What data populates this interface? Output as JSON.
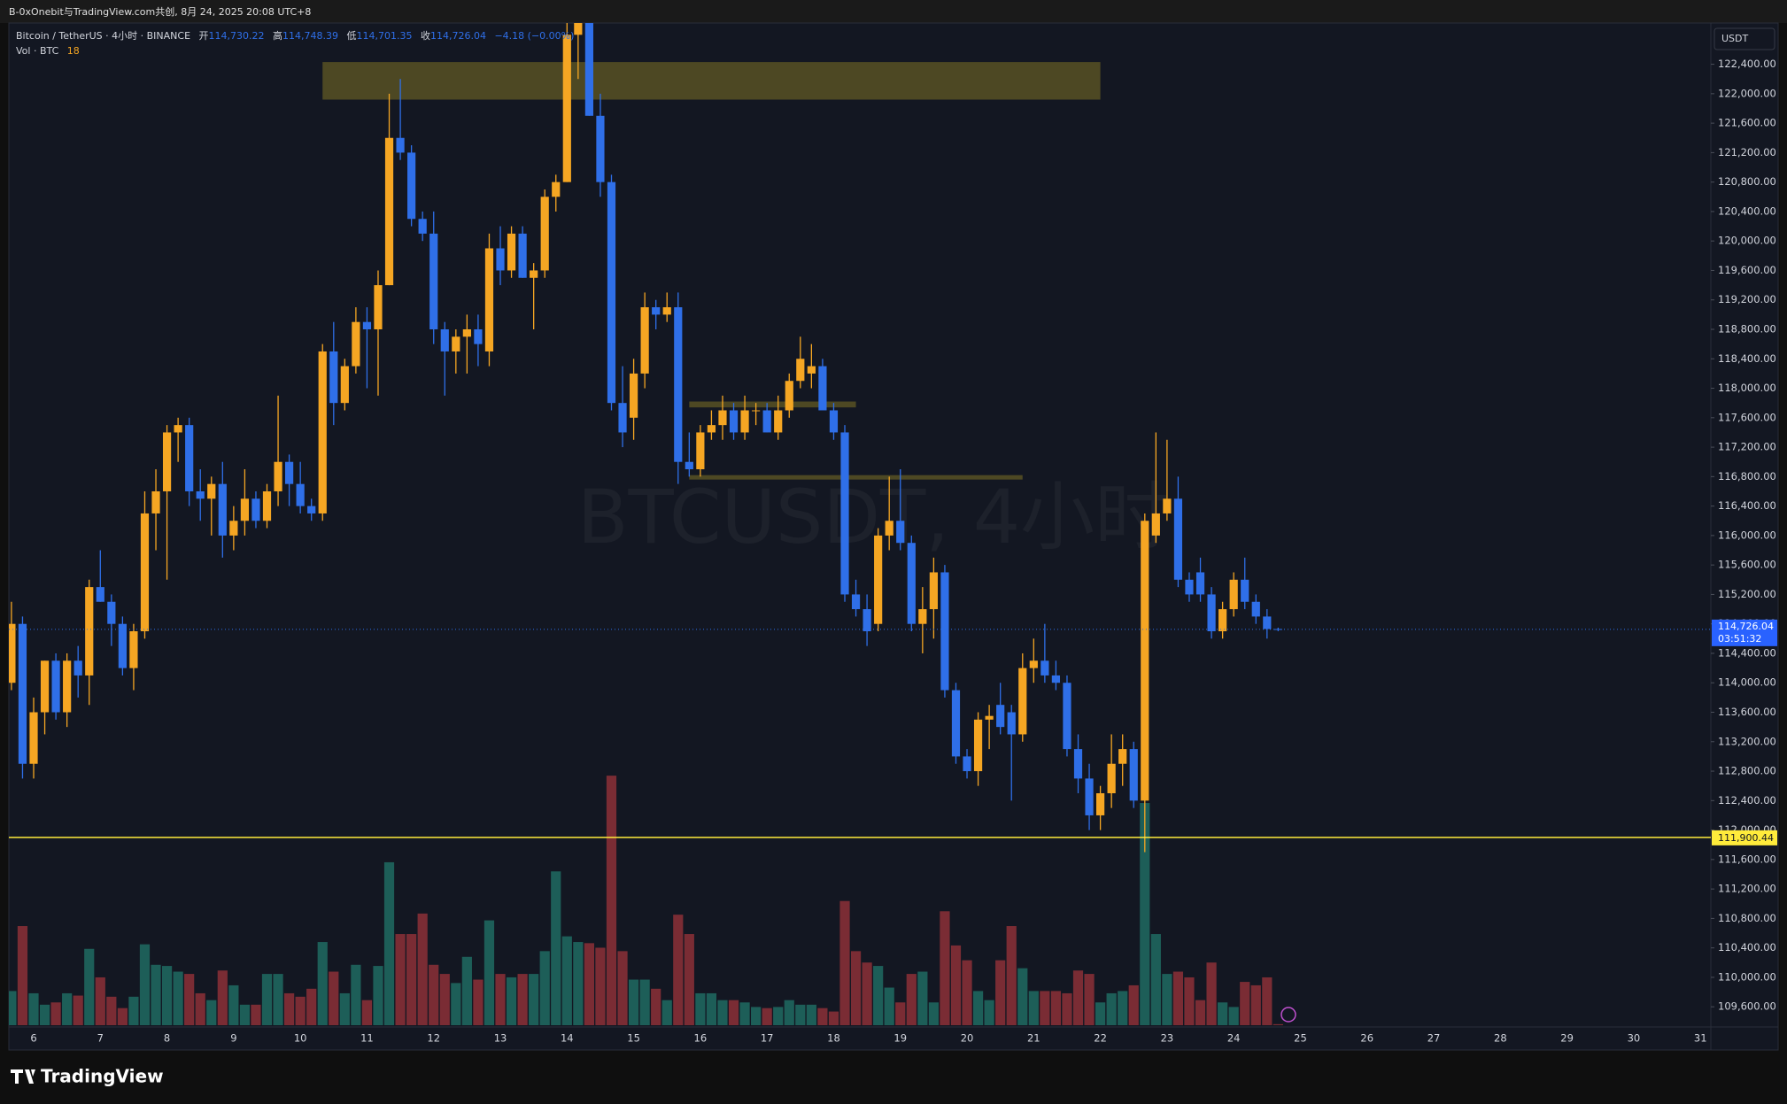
{
  "header": {
    "source": "B-0xOnebit与TradingView.com共创, 8月 24, 2025 20:08 UTC+8",
    "symbol": "Bitcoin / TetherUS · 4小时 · BINANCE",
    "ohlc_names": [
      "开",
      "高",
      "低",
      "收"
    ],
    "change": "−4.18 (−0.00%)",
    "volume_name": "Vol · BTC",
    "currency": "USDT",
    "watermark": "BTCUSDT, 4小时",
    "brand": "TradingView"
  },
  "chart_data": {
    "type": "candlestick",
    "open": [
      114000,
      114800,
      112900,
      113600,
      114300,
      113600,
      114300,
      114100,
      115300,
      115100,
      114800,
      114200,
      114700,
      116300,
      116600,
      117400,
      117500,
      116600,
      116500,
      116700,
      116000,
      116200,
      116500,
      116200,
      116600,
      117000,
      116700,
      116400,
      116300,
      118500,
      117800,
      118300,
      118900,
      118800,
      119400,
      121400,
      121200,
      120300,
      120100,
      118800,
      118500,
      118700,
      118800,
      118500,
      119900,
      119600,
      120100,
      119500,
      119600,
      120600,
      120800,
      122800,
      123100,
      121700,
      120800,
      117800,
      117600,
      118200,
      119100,
      119000,
      119100,
      117000,
      116900,
      117400,
      117500,
      117700,
      117400,
      117700,
      117700,
      117400,
      117700,
      118100,
      118200,
      118300,
      117700,
      117400,
      115200,
      115000,
      114800,
      116000,
      116200,
      115900,
      114800,
      115000,
      115500,
      113900,
      113000,
      112800,
      113500,
      113700,
      113600,
      113300,
      114200,
      114300,
      114100,
      114000,
      113100,
      112700,
      112200,
      112500,
      112900,
      113100,
      112400,
      116000,
      116300,
      116500,
      115400,
      115500,
      115200,
      114700,
      115000,
      115400,
      115100,
      114900,
      114730.22
    ],
    "high": [
      115100,
      114900,
      113800,
      114300,
      114400,
      114400,
      114500,
      115400,
      115800,
      115200,
      114900,
      114800,
      116600,
      116900,
      117500,
      117600,
      117600,
      116900,
      116800,
      117000,
      116400,
      116900,
      116600,
      116700,
      117900,
      117100,
      117000,
      116500,
      118600,
      118900,
      118400,
      119100,
      119100,
      119600,
      122000,
      122200,
      121300,
      120400,
      120400,
      118900,
      118800,
      119000,
      119000,
      120100,
      120200,
      120200,
      120200,
      119700,
      120700,
      120900,
      123300,
      123300,
      123500,
      122000,
      120900,
      118300,
      118400,
      119300,
      119200,
      119300,
      119300,
      117400,
      117500,
      117700,
      117900,
      117800,
      117900,
      117800,
      117800,
      117900,
      118200,
      118700,
      118600,
      118400,
      117800,
      117500,
      115400,
      115200,
      116100,
      116800,
      116900,
      116000,
      115300,
      115700,
      115600,
      114000,
      113100,
      113600,
      113700,
      114000,
      113700,
      114400,
      114600,
      114800,
      114300,
      114100,
      113300,
      112900,
      112600,
      113300,
      113300,
      113200,
      116300,
      117400,
      117300,
      116800,
      115500,
      115700,
      115300,
      115100,
      115500,
      115700,
      115200,
      115000,
      114748.39
    ],
    "low": [
      113900,
      112700,
      112700,
      113300,
      113500,
      113400,
      113800,
      113700,
      115100,
      114500,
      114100,
      113900,
      114600,
      115800,
      115400,
      117000,
      116400,
      116200,
      116000,
      115700,
      115800,
      116000,
      116100,
      116100,
      116400,
      116400,
      116300,
      116200,
      116200,
      117500,
      117700,
      118200,
      118000,
      117900,
      119400,
      121100,
      120200,
      120000,
      118600,
      117900,
      118200,
      118200,
      118300,
      118300,
      119400,
      119500,
      119500,
      118800,
      119500,
      120400,
      120800,
      122200,
      121700,
      120600,
      117700,
      117200,
      117300,
      118000,
      118800,
      118900,
      116700,
      116800,
      116800,
      117300,
      117300,
      117300,
      117300,
      117500,
      117400,
      117300,
      117600,
      118000,
      118000,
      117700,
      117300,
      115100,
      114900,
      114500,
      114700,
      115800,
      115800,
      114700,
      114400,
      114600,
      113800,
      112900,
      112700,
      112600,
      113100,
      113300,
      112400,
      113200,
      114000,
      114000,
      113900,
      113000,
      112500,
      112000,
      112000,
      112300,
      112600,
      112300,
      111700,
      115900,
      116200,
      115300,
      115100,
      115100,
      114600,
      114600,
      114900,
      115000,
      114800,
      114600,
      114701.35
    ],
    "close": [
      114800,
      112900,
      113600,
      114300,
      113600,
      114300,
      114100,
      115300,
      115100,
      114800,
      114200,
      114700,
      116300,
      116600,
      117400,
      117500,
      116600,
      116500,
      116700,
      116000,
      116200,
      116500,
      116200,
      116600,
      117000,
      116700,
      116400,
      116300,
      118500,
      117800,
      118300,
      118900,
      118800,
      119400,
      121400,
      121200,
      120300,
      120100,
      118800,
      118500,
      118700,
      118800,
      118600,
      119900,
      119600,
      120100,
      119500,
      119600,
      120600,
      120800,
      122800,
      123100,
      121700,
      120800,
      117800,
      117400,
      118200,
      119100,
      119000,
      119100,
      117000,
      116900,
      117400,
      117500,
      117700,
      117400,
      117700,
      117700,
      117400,
      117700,
      118100,
      118400,
      118300,
      117700,
      117400,
      115200,
      115000,
      114700,
      116000,
      116200,
      115900,
      114800,
      115000,
      115500,
      113900,
      113000,
      112800,
      113500,
      113550,
      113400,
      113300,
      114200,
      114300,
      114100,
      114000,
      113100,
      112700,
      112200,
      112500,
      112900,
      113100,
      112400,
      116200,
      116300,
      116500,
      115400,
      115200,
      115200,
      114700,
      115000,
      115400,
      115100,
      114900,
      114730,
      114726.04
    ],
    "volume": [
      600,
      1740,
      560,
      360,
      400,
      560,
      520,
      1340,
      840,
      500,
      300,
      500,
      1420,
      1060,
      1040,
      940,
      900,
      560,
      440,
      960,
      700,
      360,
      360,
      900,
      900,
      560,
      500,
      640,
      1460,
      940,
      560,
      1060,
      440,
      1040,
      2860,
      1600,
      1600,
      1960,
      1060,
      900,
      740,
      1200,
      800,
      1840,
      900,
      840,
      900,
      900,
      1300,
      2700,
      1560,
      1460,
      1440,
      1360,
      4380,
      1300,
      800,
      800,
      640,
      440,
      1940,
      1600,
      560,
      560,
      440,
      440,
      400,
      320,
      300,
      320,
      440,
      360,
      360,
      300,
      240,
      2180,
      1300,
      1100,
      1040,
      660,
      400,
      900,
      940,
      400,
      2000,
      1400,
      1140,
      600,
      440,
      1140,
      1740,
      1000,
      600,
      600,
      600,
      560,
      960,
      900,
      400,
      560,
      600,
      700,
      3900,
      1600,
      900,
      940,
      840,
      440,
      1100,
      400,
      320,
      760,
      700,
      840,
      18
    ],
    "ohlc_value_labels": [
      "114,730.22",
      "114,748.39",
      "114,701.35",
      "114,726.04"
    ],
    "up_color": "#f5a623",
    "down_color": "#2f6fe8",
    "volume_up_color": "#1d5e58",
    "volume_down_color": "#7a2c34",
    "ylim": [
      109350,
      122960
    ],
    "yticks": [
      {
        "value": 109600,
        "label": "109,600.00"
      },
      {
        "value": 110000,
        "label": "110,000.00"
      },
      {
        "value": 110400,
        "label": "110,400.00"
      },
      {
        "value": 110800,
        "label": "110,800.00"
      },
      {
        "value": 111200,
        "label": "111,200.00"
      },
      {
        "value": 111600,
        "label": "111,600.00"
      },
      {
        "value": 112000,
        "label": "112,000.00"
      },
      {
        "value": 112400,
        "label": "112,400.00"
      },
      {
        "value": 112800,
        "label": "112,800.00"
      },
      {
        "value": 113200,
        "label": "113,200.00"
      },
      {
        "value": 113600,
        "label": "113,600.00"
      },
      {
        "value": 114000,
        "label": "114,000.00"
      },
      {
        "value": 114400,
        "label": "114,400.00"
      },
      {
        "value": 114800,
        "label": "114,800.00"
      },
      {
        "value": 115200,
        "label": "115,200.00"
      },
      {
        "value": 115600,
        "label": "115,600.00"
      },
      {
        "value": 116000,
        "label": "116,000.00"
      },
      {
        "value": 116400,
        "label": "116,400.00"
      },
      {
        "value": 116800,
        "label": "116,800.00"
      },
      {
        "value": 117200,
        "label": "117,200.00"
      },
      {
        "value": 117600,
        "label": "117,600.00"
      },
      {
        "value": 118000,
        "label": "118,000.00"
      },
      {
        "value": 118400,
        "label": "118,400.00"
      },
      {
        "value": 118800,
        "label": "118,800.00"
      },
      {
        "value": 119200,
        "label": "119,200.00"
      },
      {
        "value": 119600,
        "label": "119,600.00"
      },
      {
        "value": 120000,
        "label": "120,000.00"
      },
      {
        "value": 120400,
        "label": "120,400.00"
      },
      {
        "value": 120800,
        "label": "120,800.00"
      },
      {
        "value": 121200,
        "label": "121,200.00"
      },
      {
        "value": 121600,
        "label": "121,600.00"
      },
      {
        "value": 122000,
        "label": "122,000.00"
      },
      {
        "value": 122400,
        "label": "122,400.00"
      }
    ],
    "x_labels": [
      "6",
      "7",
      "8",
      "9",
      "10",
      "11",
      "12",
      "13",
      "14",
      "15",
      "16",
      "17",
      "18",
      "19",
      "20",
      "21",
      "22",
      "23",
      "24",
      "25",
      "26",
      "27",
      "28",
      "29",
      "30",
      "31"
    ],
    "grid": false,
    "price_lines": [
      {
        "value": 111900.44,
        "label": "111,900.44",
        "color": "#ffeb3b"
      }
    ],
    "last_price_label": "114,726.04",
    "countdown": "03:51:32",
    "zones": [
      {
        "start": 28,
        "end": 98,
        "top": 122430,
        "bottom": 121920,
        "color": "#4d4823"
      },
      {
        "start": 61,
        "end": 76,
        "top": 117820,
        "bottom": 117740,
        "color": "#4d4823"
      },
      {
        "start": 61,
        "end": 91,
        "top": 116820,
        "bottom": 116760,
        "color": "#4d4823"
      }
    ]
  }
}
